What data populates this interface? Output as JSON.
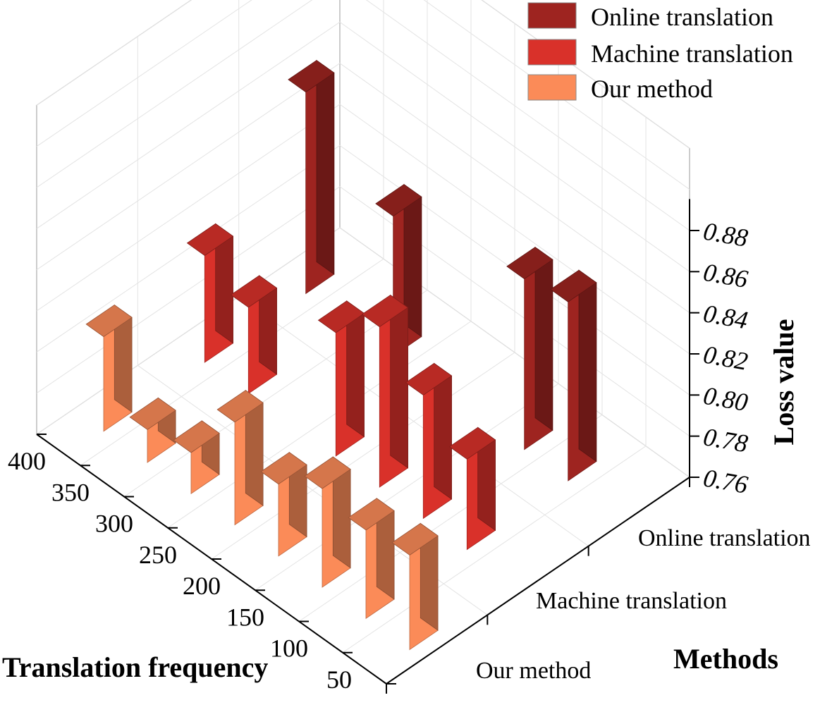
{
  "chart_data": {
    "type": "bar",
    "subtype": "3d-bar",
    "x_axis": {
      "label": "Translation frequency",
      "categories": [
        "50",
        "100",
        "150",
        "200",
        "250",
        "300",
        "350",
        "400"
      ]
    },
    "y_axis": {
      "label": "Methods",
      "categories": [
        "Our method",
        "Machine translation",
        "Online translation"
      ]
    },
    "z_axis": {
      "label": "Loss value",
      "ticks": [
        "0.76",
        "0.78",
        "0.80",
        "0.82",
        "0.84",
        "0.86",
        "0.88"
      ],
      "zlim": [
        0.76,
        0.88
      ]
    },
    "series": [
      {
        "name": "Online translation",
        "color": "#9e2420",
        "x": [
          "100",
          "150",
          "300",
          "400"
        ],
        "values": [
          0.847,
          0.843,
          0.828,
          0.858
        ]
      },
      {
        "name": "Machine translation",
        "color": "#d9312a",
        "x": [
          "100",
          "150",
          "200",
          "250",
          "350",
          "400"
        ],
        "values": [
          0.804,
          0.82,
          0.838,
          0.82,
          0.802,
          0.812
        ]
      },
      {
        "name": "Our method",
        "color": "#fb8b58",
        "x": [
          "50",
          "100",
          "150",
          "200",
          "250",
          "300",
          "350",
          "400"
        ],
        "values": [
          0.806,
          0.803,
          0.808,
          0.795,
          0.81,
          0.78,
          0.776,
          0.806
        ]
      }
    ],
    "legend": {
      "position": "top-right",
      "entries": [
        "Online translation",
        "Machine translation",
        "Our method"
      ]
    },
    "grid": true
  }
}
